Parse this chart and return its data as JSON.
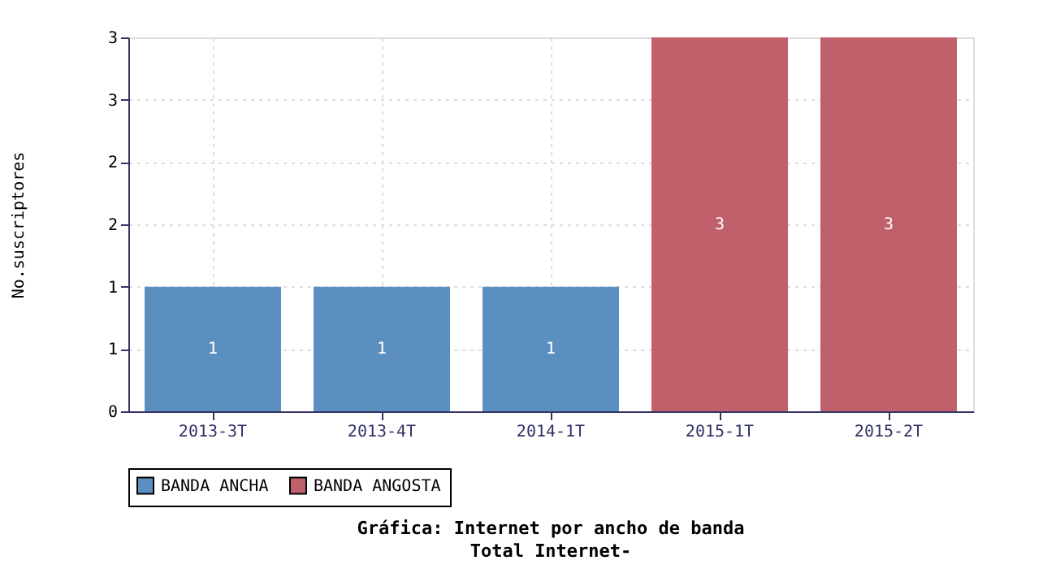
{
  "chart_data": {
    "type": "bar",
    "title": "Gráfica: Internet por ancho de banda",
    "subtitle": "Total Internet-",
    "ylabel": "No.suscriptores",
    "categories": [
      "2013-3T",
      "2013-4T",
      "2014-1T",
      "2015-1T",
      "2015-2T"
    ],
    "series": [
      {
        "name": "BANDA ANCHA",
        "color": "#5b8fbf",
        "values": [
          1,
          1,
          1,
          null,
          null
        ]
      },
      {
        "name": "BANDA ANGOSTA",
        "color": "#c0606a",
        "values": [
          null,
          null,
          null,
          3,
          3
        ]
      }
    ],
    "ylim": [
      0,
      3
    ],
    "yticks": [
      0,
      {
        "value": 0.5,
        "label": "1"
      },
      1,
      {
        "value": 1.5,
        "label": "2"
      },
      2,
      {
        "value": 2.5,
        "label": "3"
      },
      3
    ],
    "data_labels": true,
    "grid": true,
    "legend": "bottom"
  }
}
